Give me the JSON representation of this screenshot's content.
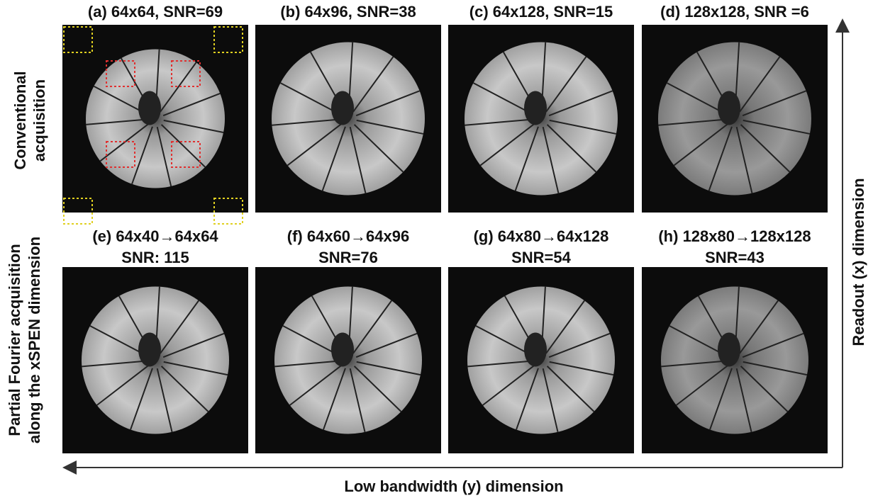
{
  "axes": {
    "left_top": [
      "Conventional",
      "acquisition"
    ],
    "left_bottom": [
      "Partial Fourier acquisition",
      "along the xSPEN dimension"
    ],
    "right": "Readout (x) dimension",
    "bottom": "Low bandwidth (y) dimension"
  },
  "top_row": [
    {
      "title": "(a) 64x64, SNR=69"
    },
    {
      "title": "(b) 64x96, SNR=38"
    },
    {
      "title": "(c) 64x128, SNR=15"
    },
    {
      "title": "(d) 128x128, SNR =6"
    }
  ],
  "bottom_row": [
    {
      "title": "(e) 64x40→64x64",
      "snr": "SNR: 115"
    },
    {
      "title": "(f) 64x60→64x96",
      "snr": "SNR=76"
    },
    {
      "title": "(g) 64x80→64x128",
      "snr": "SNR=54"
    },
    {
      "title": "(h) 128x80→128x128",
      "snr": "SNR=43"
    }
  ]
}
